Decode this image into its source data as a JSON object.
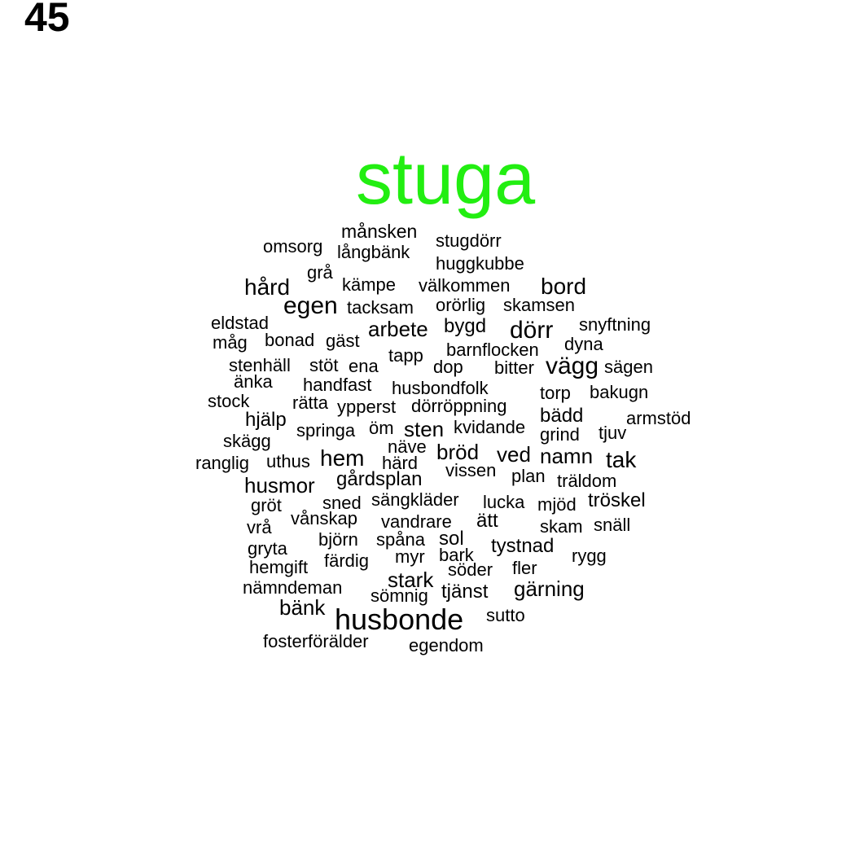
{
  "page_number": "45",
  "colors": {
    "highlight": "#22ee11",
    "text": "#000000"
  },
  "words": [
    {
      "text": "stuga",
      "highlight": true
    },
    {
      "text": "månsken"
    },
    {
      "text": "stugdörr"
    },
    {
      "text": "omsorg"
    },
    {
      "text": "långbänk"
    },
    {
      "text": "huggkubbe"
    },
    {
      "text": "grå"
    },
    {
      "text": "hård"
    },
    {
      "text": "kämpe"
    },
    {
      "text": "välkommen"
    },
    {
      "text": "bord"
    },
    {
      "text": "egen"
    },
    {
      "text": "tacksam"
    },
    {
      "text": "orörlig"
    },
    {
      "text": "skamsen"
    },
    {
      "text": "eldstad"
    },
    {
      "text": "arbete"
    },
    {
      "text": "bygd"
    },
    {
      "text": "dörr"
    },
    {
      "text": "snyftning"
    },
    {
      "text": "måg"
    },
    {
      "text": "bonad"
    },
    {
      "text": "gäst"
    },
    {
      "text": "dyna"
    },
    {
      "text": "barnflocken"
    },
    {
      "text": "tapp"
    },
    {
      "text": "stenhäll"
    },
    {
      "text": "stöt"
    },
    {
      "text": "ena"
    },
    {
      "text": "dop"
    },
    {
      "text": "bitter"
    },
    {
      "text": "vägg"
    },
    {
      "text": "sägen"
    },
    {
      "text": "änka"
    },
    {
      "text": "handfast"
    },
    {
      "text": "husbondfolk"
    },
    {
      "text": "torp"
    },
    {
      "text": "bakugn"
    },
    {
      "text": "stock"
    },
    {
      "text": "rätta"
    },
    {
      "text": "ypperst"
    },
    {
      "text": "dörröppning"
    },
    {
      "text": "bädd"
    },
    {
      "text": "armstöd"
    },
    {
      "text": "hjälp"
    },
    {
      "text": "springa"
    },
    {
      "text": "öm"
    },
    {
      "text": "sten"
    },
    {
      "text": "kvidande"
    },
    {
      "text": "grind"
    },
    {
      "text": "tjuv"
    },
    {
      "text": "skägg"
    },
    {
      "text": "näve"
    },
    {
      "text": "bröd"
    },
    {
      "text": "ved"
    },
    {
      "text": "namn"
    },
    {
      "text": "tak"
    },
    {
      "text": "ranglig"
    },
    {
      "text": "uthus"
    },
    {
      "text": "hem"
    },
    {
      "text": "härd"
    },
    {
      "text": "vissen"
    },
    {
      "text": "plan"
    },
    {
      "text": "träldom"
    },
    {
      "text": "gårdsplan"
    },
    {
      "text": "husmor"
    },
    {
      "text": "tröskel"
    },
    {
      "text": "gröt"
    },
    {
      "text": "sned"
    },
    {
      "text": "sängkläder"
    },
    {
      "text": "lucka"
    },
    {
      "text": "mjöd"
    },
    {
      "text": "vånskap"
    },
    {
      "text": "vrå"
    },
    {
      "text": "vandrare"
    },
    {
      "text": "ätt"
    },
    {
      "text": "skam"
    },
    {
      "text": "snäll"
    },
    {
      "text": "björn"
    },
    {
      "text": "spåna"
    },
    {
      "text": "sol"
    },
    {
      "text": "gryta"
    },
    {
      "text": "tystnad"
    },
    {
      "text": "färdig"
    },
    {
      "text": "myr"
    },
    {
      "text": "bark"
    },
    {
      "text": "rygg"
    },
    {
      "text": "hemgift"
    },
    {
      "text": "söder"
    },
    {
      "text": "fler"
    },
    {
      "text": "stark"
    },
    {
      "text": "nämndeman"
    },
    {
      "text": "gärning"
    },
    {
      "text": "sömnig"
    },
    {
      "text": "tjänst"
    },
    {
      "text": "bänk"
    },
    {
      "text": "husbonde"
    },
    {
      "text": "sutto"
    },
    {
      "text": "fosterförälder"
    },
    {
      "text": "egendom"
    }
  ]
}
